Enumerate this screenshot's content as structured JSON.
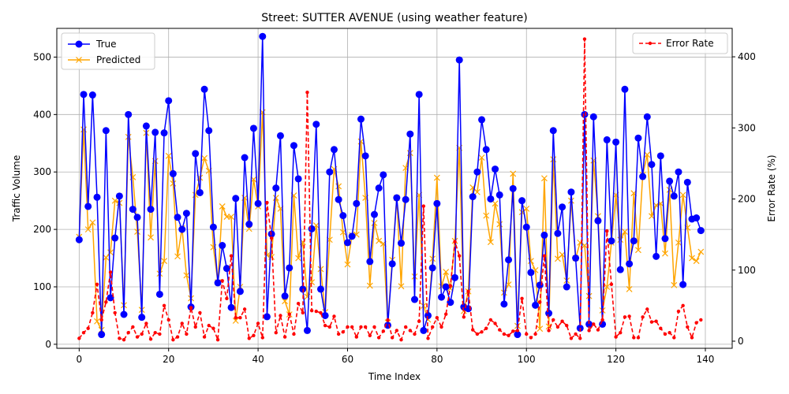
{
  "chart_data": {
    "type": "line",
    "title": "Street: SUTTER AVENUE (using weather feature)",
    "xlabel": "Time Index",
    "ylabel": "Traffic Volume",
    "y2label": "Error Rate (%)",
    "xlim": [
      -5,
      146
    ],
    "ylim": [
      -7,
      550
    ],
    "y2lim": [
      -10,
      440
    ],
    "xticks": [
      0,
      20,
      40,
      60,
      80,
      100,
      120,
      140
    ],
    "yticks": [
      0,
      100,
      200,
      300,
      400,
      500
    ],
    "y2ticks": [
      0,
      100,
      200,
      300,
      400
    ],
    "grid": true,
    "legend_left_position": "upper-left",
    "legend_right_position": "upper-right",
    "colors": {
      "true": "#0000ff",
      "predicted": "#ffa500",
      "error": "#ff0000"
    },
    "series": [
      {
        "name": "True",
        "values": [
          182,
          435,
          240,
          434,
          256,
          17,
          372,
          81,
          185,
          258,
          52,
          400,
          235,
          221,
          47,
          380,
          235,
          369,
          87,
          368,
          424,
          297,
          221,
          200,
          228,
          65,
          332,
          264,
          444,
          372,
          204,
          107,
          172,
          132,
          64,
          254,
          92,
          325,
          209,
          376,
          245,
          536,
          48,
          192,
          272,
          363,
          84,
          133,
          346,
          288,
          96,
          24,
          201,
          383,
          96,
          50,
          300,
          339,
          252,
          224,
          177,
          188,
          245,
          392,
          328,
          144,
          226,
          272,
          295,
          33,
          140,
          255,
          176,
          252,
          366,
          78,
          435,
          24,
          50,
          133,
          245,
          82,
          100,
          73,
          116,
          495,
          65,
          62,
          257,
          300,
          391,
          339,
          253,
          305,
          260,
          70,
          147,
          271,
          17,
          250,
          204,
          125,
          68,
          103,
          190,
          54,
          372,
          193,
          239,
          100,
          265,
          150,
          28,
          400,
          35,
          396,
          215,
          35,
          356,
          180,
          352,
          130,
          444,
          140,
          180,
          359,
          292,
          396,
          313,
          153,
          328,
          184,
          284,
          258,
          300,
          104,
          282,
          218,
          220,
          198
        ]
      },
      {
        "name": "Predicted",
        "values": [
          187,
          374,
          200,
          212,
          40,
          25,
          151,
          160,
          250,
          246,
          68,
          361,
          291,
          196,
          60,
          368,
          186,
          319,
          123,
          145,
          328,
          280,
          153,
          202,
          120,
          80,
          260,
          290,
          324,
          302,
          169,
          108,
          240,
          222,
          222,
          41,
          100,
          255,
          201,
          287,
          240,
          404,
          155,
          152,
          255,
          236,
          75,
          52,
          259,
          150,
          178,
          83,
          108,
          207,
          131,
          56,
          182,
          305,
          275,
          195,
          139,
          190,
          191,
          353,
          255,
          102,
          211,
          180,
          175,
          38,
          147,
          255,
          101,
          307,
          333,
          118,
          260,
          67,
          43,
          149,
          290,
          101,
          126,
          97,
          180,
          342,
          58,
          92,
          273,
          265,
          325,
          224,
          178,
          245,
          209,
          90,
          104,
          297,
          32,
          230,
          236,
          145,
          129,
          27,
          289,
          31,
          322,
          149,
          156,
          111,
          250,
          150,
          177,
          172,
          84,
          320,
          223,
          59,
          100,
          177,
          260,
          182,
          196,
          96,
          263,
          164,
          295,
          330,
          223,
          242,
          245,
          158,
          269,
          103,
          177,
          260,
          203,
          150,
          145,
          161
        ]
      },
      {
        "name": "Error Rate",
        "values": [
          4,
          12,
          18,
          40,
          80,
          30,
          55,
          97,
          40,
          4,
          2,
          12,
          20,
          6,
          10,
          25,
          3,
          12,
          10,
          50,
          30,
          2,
          6,
          25,
          10,
          47,
          20,
          40,
          6,
          22,
          18,
          2,
          85,
          60,
          120,
          33,
          33,
          45,
          4,
          8,
          25,
          5,
          195,
          145,
          12,
          36,
          6,
          38,
          10,
          53,
          40,
          350,
          43,
          42,
          40,
          22,
          20,
          35,
          10,
          13,
          20,
          20,
          6,
          20,
          20,
          8,
          20,
          5,
          14,
          30,
          5,
          15,
          2,
          20,
          15,
          10,
          28,
          190,
          4,
          20,
          33,
          20,
          38,
          78,
          140,
          120,
          34,
          70,
          16,
          10,
          13,
          18,
          30,
          25,
          16,
          10,
          8,
          14,
          15,
          60,
          10,
          5,
          10,
          55,
          120,
          15,
          30,
          20,
          28,
          22,
          4,
          10,
          4,
          425,
          15,
          24,
          16,
          30,
          155,
          80,
          6,
          12,
          34,
          35,
          5,
          5,
          34,
          45,
          27,
          28,
          18,
          10,
          12,
          5,
          42,
          50,
          20,
          5,
          26,
          30
        ]
      }
    ]
  }
}
